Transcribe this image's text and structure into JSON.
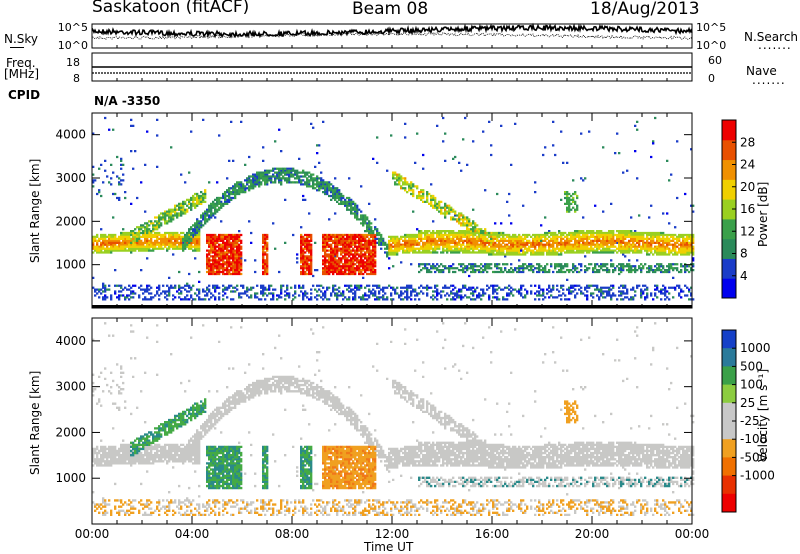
{
  "header": {
    "station": "Saskatoon (fitACF)",
    "beam": "Beam 08",
    "date": "18/Aug/2013"
  },
  "side_labels": {
    "nsky": "N.Sky",
    "nsearch": "N.Search",
    "freq_top": "Freq.",
    "freq_unit": "[MHz]",
    "nave": "Nave",
    "cpid": "CPID",
    "cpid_value": "N/A -3350",
    "dots": "......."
  },
  "top_panels": {
    "noise": {
      "left_ticks": [
        "10^5",
        "10^0"
      ],
      "right_ticks": [
        "10^5",
        "10^0"
      ]
    },
    "freq": {
      "left_ticks": [
        "18",
        "8"
      ],
      "right_ticks": [
        "60",
        "0"
      ]
    }
  },
  "colors": {
    "power_scale": [
      "#0000ee",
      "#1a3cc8",
      "#2a8a5a",
      "#3aa04a",
      "#9ad020",
      "#f0d000",
      "#f09000",
      "#e85000",
      "#ee0000"
    ],
    "velocity_scale": [
      "#1540c8",
      "#2a7a9a",
      "#3aa048",
      "#8ccc40",
      "#c8c8c8",
      "#c8c8c8",
      "#f0a020",
      "#f07000",
      "#e83000",
      "#ee0000"
    ],
    "noise_band": "#ffffff"
  },
  "chart_data": [
    {
      "type": "heatmap",
      "name_key": "power",
      "title": "",
      "xlabel": "Time UT",
      "ylabel": "Slant Range [km]",
      "x_ticks": [
        "00:00",
        "04:00",
        "08:00",
        "12:00",
        "16:00",
        "20:00",
        "00:00"
      ],
      "x_range_hours": [
        0,
        24
      ],
      "ylim": [
        0,
        4500
      ],
      "y_ticks": [
        1000,
        2000,
        3000,
        4000
      ],
      "colorbar_label": "Power [dB]",
      "colorbar_ticks": [
        4,
        8,
        12,
        16,
        20,
        24,
        28
      ],
      "colorbar_range": [
        0,
        32
      ],
      "grid": false
    },
    {
      "type": "heatmap",
      "name_key": "velocity",
      "title": "",
      "xlabel": "Time UT",
      "ylabel": "Slant Range [km]",
      "x_ticks": [
        "00:00",
        "04:00",
        "08:00",
        "12:00",
        "16:00",
        "20:00",
        "00:00"
      ],
      "x_range_hours": [
        0,
        24
      ],
      "ylim": [
        0,
        4500
      ],
      "y_ticks": [
        1000,
        2000,
        3000,
        4000
      ],
      "colorbar_label": "Velocity [m s⁻¹]",
      "colorbar_ticks": [
        1000,
        500,
        100,
        25,
        -25,
        -100,
        -500,
        -1000
      ],
      "grid": false
    }
  ]
}
